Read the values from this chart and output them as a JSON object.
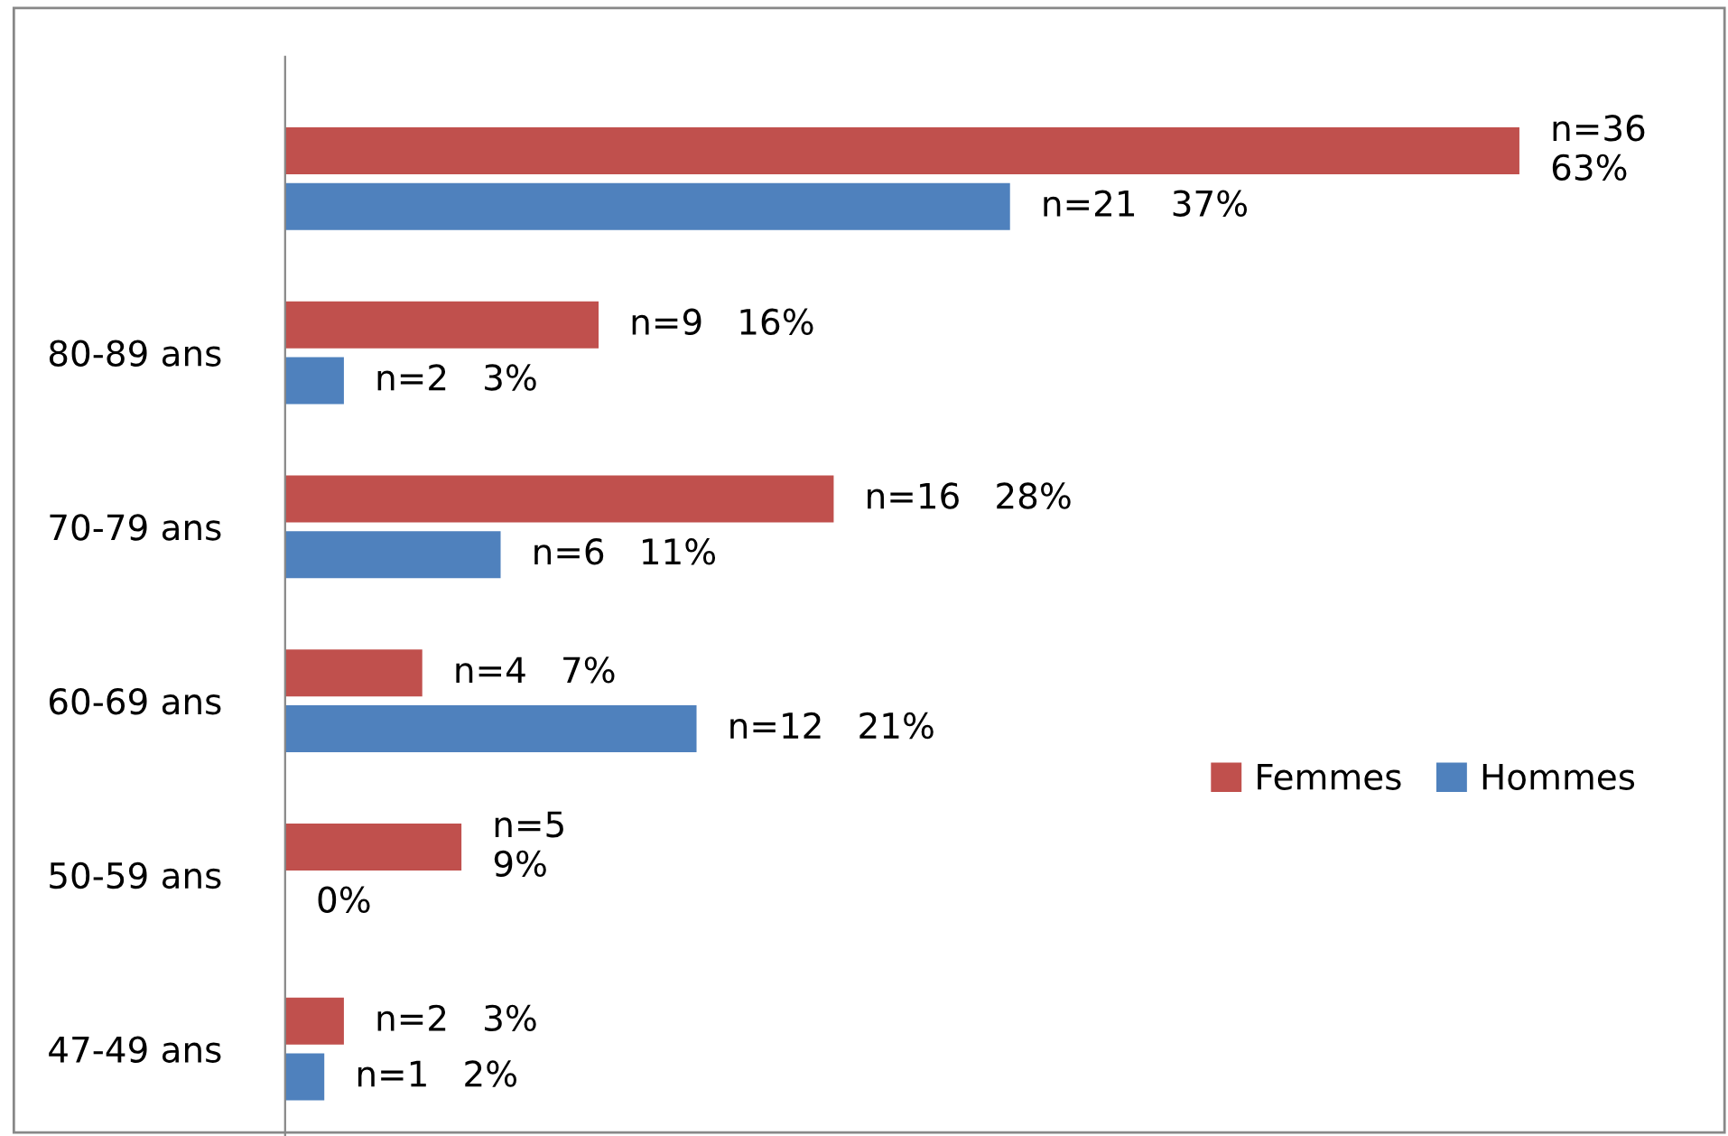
{
  "chart_data": {
    "type": "bar",
    "orientation": "horizontal",
    "categories": [
      null,
      "80-89 ans",
      "70-79 ans",
      "60-69 ans",
      "50-59 ans",
      "47-49 ans"
    ],
    "series": [
      {
        "name": "Femmes",
        "color": "#c0504d",
        "values": [
          63,
          16,
          28,
          7,
          9,
          3
        ],
        "value_labels": [
          "n=36\n63%",
          "n=9   16%",
          "n=16   28%",
          "n=4   7%",
          "n=5\n9%",
          "n=2   3%"
        ]
      },
      {
        "name": "Hommes",
        "color": "#4f81bd",
        "values": [
          37,
          3,
          11,
          21,
          0,
          2
        ],
        "value_labels": [
          "n=21   37%",
          "n=2   3%",
          "n=6   11%",
          "n=12   21%",
          "0%",
          "n=1   2%"
        ]
      }
    ],
    "legend": "right",
    "grid": false
  }
}
